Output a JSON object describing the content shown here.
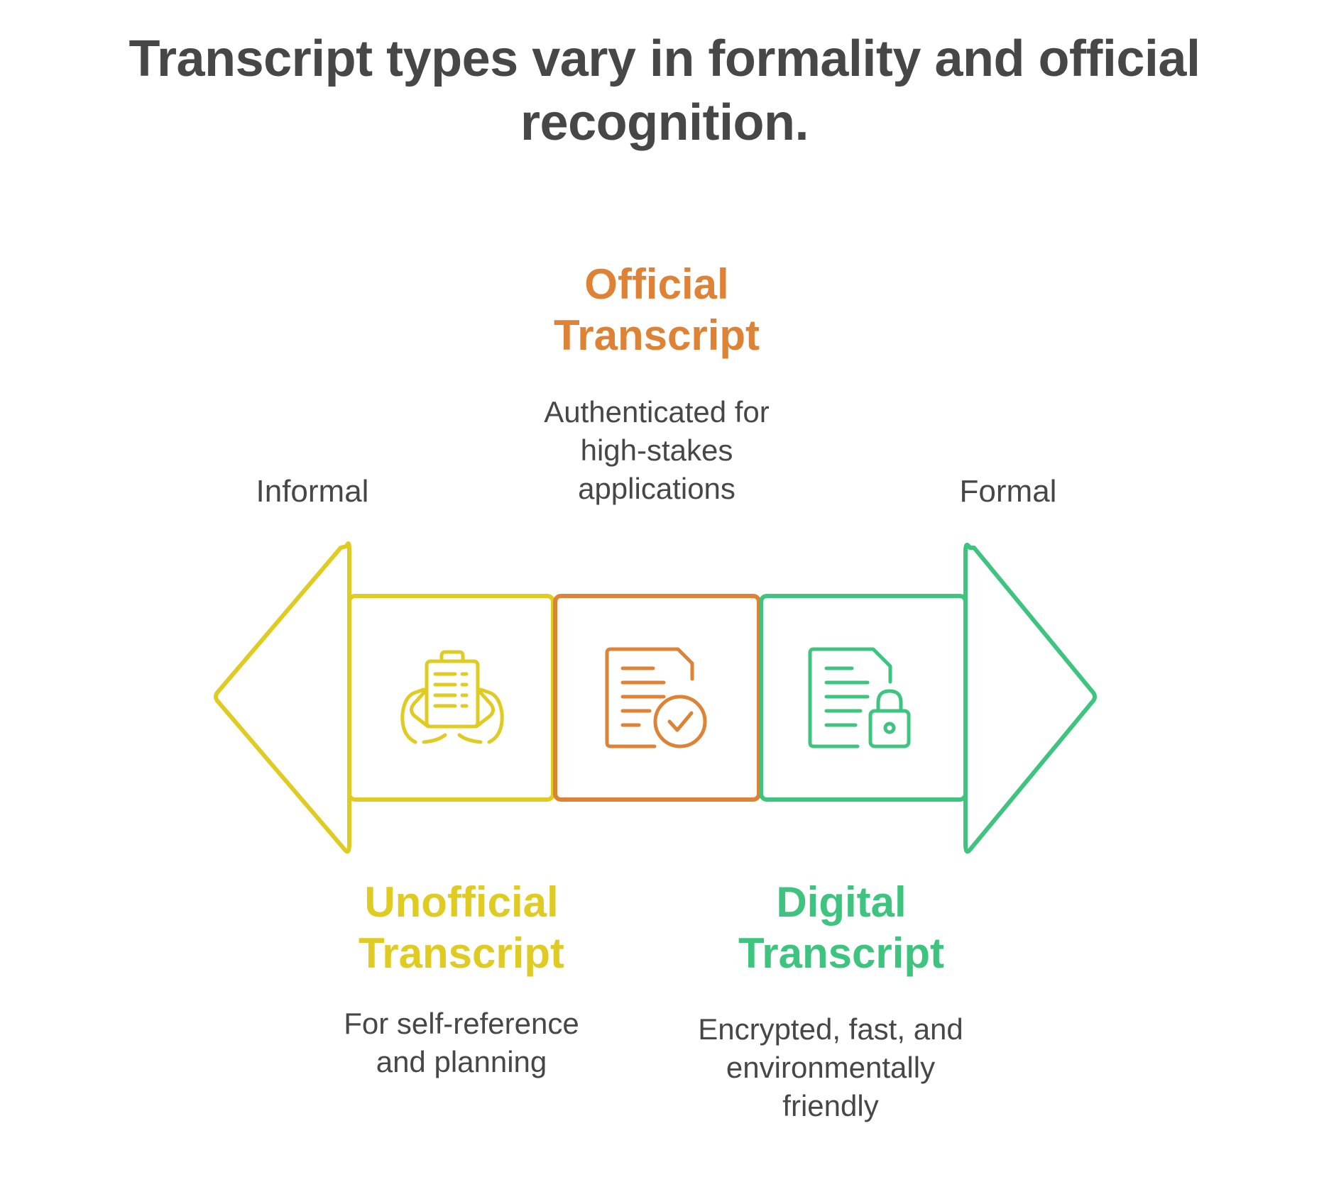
{
  "title": "Transcript types vary in formality and official recognition.",
  "scale": {
    "left_label": "Informal",
    "right_label": "Formal"
  },
  "colors": {
    "text": "#474747",
    "unofficial": "#DFCB22",
    "official": "#DE8236",
    "digital": "#3EC47F"
  },
  "items": [
    {
      "heading": "Unofficial Transcript",
      "description": "For self-reference and planning",
      "icon": "hands-holding-clipboard-icon",
      "color": "#DFCB22"
    },
    {
      "heading": "Official Transcript",
      "description": "Authenticated for high-stakes applications",
      "icon": "document-check-icon",
      "color": "#DE8236"
    },
    {
      "heading": "Digital Transcript",
      "description": "Encrypted, fast, and environmentally friendly",
      "icon": "document-lock-icon",
      "color": "#3EC47F"
    }
  ]
}
